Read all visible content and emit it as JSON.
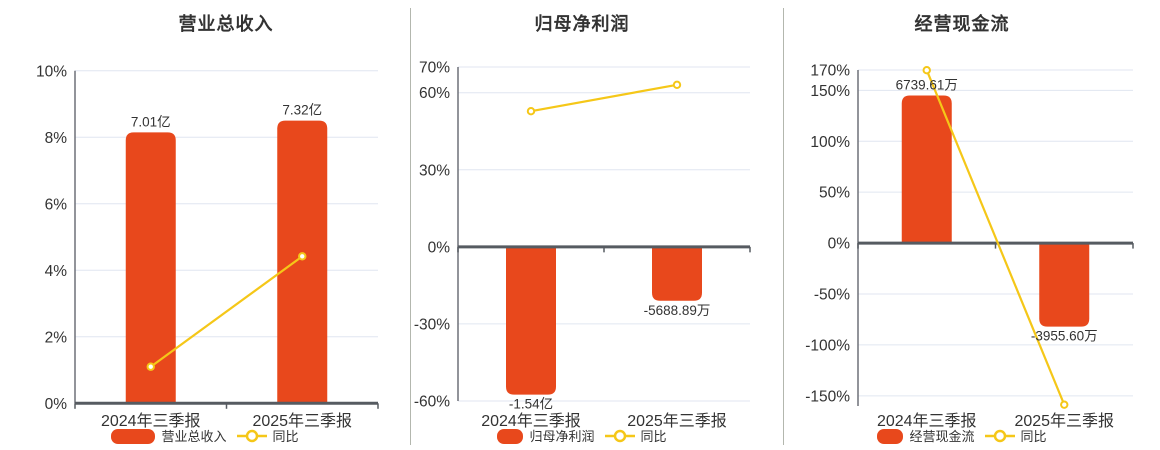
{
  "colors": {
    "bar": "#E8481C",
    "line": "#F5C718",
    "grid": "#E0E6F1",
    "axis": "#6E7079",
    "zero_axis": "#565B61",
    "text": "#333333",
    "value_label": "#333333",
    "separator": "#B3B7AE",
    "marker_fill": "#FFFFFF"
  },
  "chart_data": [
    {
      "type": "bar+line",
      "title": "营业总收入",
      "categories": [
        "2024年三季报",
        "2025年三季报"
      ],
      "bar_series": {
        "name": "营业总收入",
        "value_labels": [
          "7.01亿",
          "7.32亿"
        ],
        "plotted_pct": [
          8.15,
          8.5
        ]
      },
      "line_series": {
        "name": "同比",
        "values_pct": [
          1.1,
          4.42
        ]
      },
      "yticks": [
        10,
        8,
        6,
        4,
        2,
        0
      ],
      "ylim": [
        0,
        10
      ],
      "y_unit": "%",
      "grid": true,
      "legend_position": "bottom"
    },
    {
      "type": "bar+line",
      "title": "归母净利润",
      "categories": [
        "2024年三季报",
        "2025年三季报"
      ],
      "bar_series": {
        "name": "归母净利润",
        "value_labels": [
          "-1.54亿",
          "-5688.89万"
        ],
        "plotted_pct": [
          -57.5,
          -21
        ]
      },
      "line_series": {
        "name": "同比",
        "values_pct": [
          52.8,
          63.06
        ]
      },
      "yticks": [
        70,
        60,
        30,
        0,
        -30,
        -60
      ],
      "ylim": [
        -60,
        70
      ],
      "y_unit": "%",
      "grid": true,
      "legend_position": "bottom"
    },
    {
      "type": "bar+line",
      "title": "经营现金流",
      "categories": [
        "2024年三季报",
        "2025年三季报"
      ],
      "bar_series": {
        "name": "经营现金流",
        "value_labels": [
          "6739.61万",
          "-3955.60万"
        ],
        "plotted_pct": [
          145,
          -82
        ]
      },
      "line_series": {
        "name": "同比",
        "values_pct": [
          169.8,
          -158.7
        ]
      },
      "yticks": [
        170,
        150,
        100,
        50,
        0,
        -50,
        -100,
        -150
      ],
      "ylim": [
        -160,
        170
      ],
      "y_unit": "%",
      "grid": true,
      "legend_position": "bottom"
    }
  ]
}
